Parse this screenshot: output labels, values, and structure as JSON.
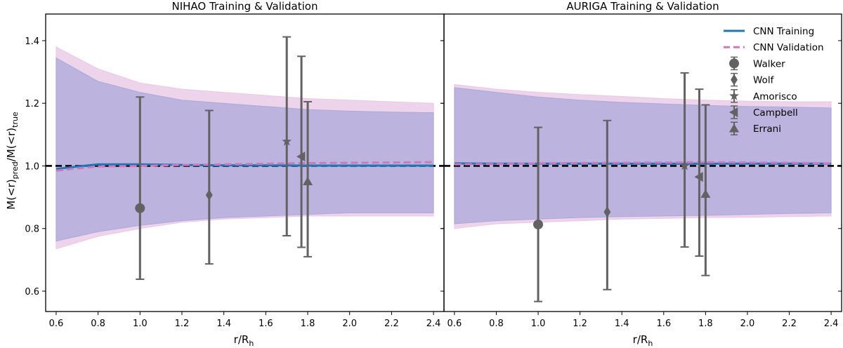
{
  "ylabel_main": "M(<r)",
  "ylabel_sub1": "pred",
  "ylabel_mid": "/M(<r)",
  "ylabel_sub2": "true",
  "xlabel_main": "r/R",
  "xlabel_sub": "h",
  "chart_data": [
    {
      "type": "line",
      "title": "NIHAO Training & Validation",
      "xlim": [
        0.55,
        2.45
      ],
      "ylim": [
        0.535,
        1.485
      ],
      "xticks": [
        0.6,
        0.8,
        1.0,
        1.2,
        1.4,
        1.6,
        1.8,
        2.0,
        2.2,
        2.4
      ],
      "yticks": [
        0.6,
        0.8,
        1.0,
        1.2,
        1.4
      ],
      "reference_line": 1.0,
      "band_validation": {
        "x": [
          0.6,
          0.8,
          1.0,
          1.2,
          1.4,
          1.6,
          1.8,
          2.0,
          2.2,
          2.4
        ],
        "upper": [
          1.38,
          1.31,
          1.265,
          1.245,
          1.235,
          1.225,
          1.215,
          1.21,
          1.205,
          1.2
        ],
        "lower": [
          0.735,
          0.775,
          0.8,
          0.82,
          0.83,
          0.835,
          0.84,
          0.84,
          0.84,
          0.84
        ]
      },
      "band_training": {
        "x": [
          0.6,
          0.8,
          1.0,
          1.2,
          1.4,
          1.6,
          1.8,
          2.0,
          2.2,
          2.4
        ],
        "upper": [
          1.345,
          1.27,
          1.235,
          1.21,
          1.2,
          1.19,
          1.18,
          1.175,
          1.172,
          1.17
        ],
        "lower": [
          0.76,
          0.79,
          0.81,
          0.825,
          0.835,
          0.84,
          0.845,
          0.85,
          0.85,
          0.85
        ]
      },
      "series": [
        {
          "name": "CNN Training",
          "x": [
            0.6,
            0.7,
            0.8,
            1.0,
            1.2,
            1.4,
            1.6,
            1.8,
            2.0,
            2.2,
            2.4
          ],
          "values": [
            0.99,
            0.998,
            1.005,
            1.005,
            1.003,
            1.002,
            1.002,
            1.001,
            1.001,
            1.001,
            1.001
          ]
        },
        {
          "name": "CNN Validation",
          "x": [
            0.6,
            0.7,
            0.8,
            1.0,
            1.2,
            1.4,
            1.6,
            1.8,
            2.0,
            2.2,
            2.4
          ],
          "values": [
            0.985,
            0.992,
            0.998,
            1.0,
            1.003,
            1.005,
            1.007,
            1.009,
            1.01,
            1.011,
            1.012
          ]
        }
      ],
      "points": [
        {
          "name": "Walker",
          "marker": "circle",
          "x": 1.0,
          "y": 0.865,
          "lo": 0.638,
          "hi": 1.22
        },
        {
          "name": "Wolf",
          "marker": "diamond",
          "x": 1.33,
          "y": 0.907,
          "lo": 0.687,
          "hi": 1.177
        },
        {
          "name": "Amorisco",
          "marker": "star",
          "x": 1.7,
          "y": 1.078,
          "lo": 0.777,
          "hi": 1.412
        },
        {
          "name": "Campbell",
          "marker": "triangle-left",
          "x": 1.77,
          "y": 1.03,
          "lo": 0.74,
          "hi": 1.35
        },
        {
          "name": "Errani",
          "marker": "triangle-up",
          "x": 1.8,
          "y": 0.95,
          "lo": 0.71,
          "hi": 1.205
        }
      ]
    },
    {
      "type": "line",
      "title": "AURIGA Training & Validation",
      "xlim": [
        0.55,
        2.45
      ],
      "ylim": [
        0.535,
        1.485
      ],
      "xticks": [
        0.6,
        0.8,
        1.0,
        1.2,
        1.4,
        1.6,
        1.8,
        2.0,
        2.2,
        2.4
      ],
      "yticks": [
        0.6,
        0.8,
        1.0,
        1.2,
        1.4
      ],
      "reference_line": 1.0,
      "band_validation": {
        "x": [
          0.6,
          0.8,
          1.0,
          1.2,
          1.4,
          1.6,
          1.8,
          2.0,
          2.2,
          2.4
        ],
        "upper": [
          1.26,
          1.245,
          1.235,
          1.228,
          1.222,
          1.215,
          1.21,
          1.207,
          1.205,
          1.205
        ],
        "lower": [
          0.8,
          0.815,
          0.82,
          0.825,
          0.83,
          0.832,
          0.835,
          0.836,
          0.838,
          0.84
        ]
      },
      "band_training": {
        "x": [
          0.6,
          0.8,
          1.0,
          1.2,
          1.4,
          1.6,
          1.8,
          2.0,
          2.2,
          2.4
        ],
        "upper": [
          1.25,
          1.235,
          1.22,
          1.21,
          1.203,
          1.198,
          1.193,
          1.19,
          1.188,
          1.185
        ],
        "lower": [
          0.815,
          0.825,
          0.83,
          0.835,
          0.838,
          0.84,
          0.842,
          0.845,
          0.848,
          0.85
        ]
      },
      "series": [
        {
          "name": "CNN Training",
          "x": [
            0.6,
            0.8,
            1.0,
            1.2,
            1.4,
            1.6,
            1.8,
            2.0,
            2.2,
            2.4
          ],
          "values": [
            1.008,
            1.007,
            1.007,
            1.007,
            1.007,
            1.007,
            1.007,
            1.007,
            1.007,
            1.007
          ]
        },
        {
          "name": "CNN Validation",
          "x": [
            0.6,
            0.8,
            1.0,
            1.2,
            1.4,
            1.6,
            1.8,
            2.0,
            2.2,
            2.4
          ],
          "values": [
            1.005,
            1.006,
            1.008,
            1.009,
            1.01,
            1.011,
            1.012,
            1.011,
            1.01,
            1.008
          ]
        }
      ],
      "points": [
        {
          "name": "Walker",
          "marker": "circle",
          "x": 1.0,
          "y": 0.813,
          "lo": 0.567,
          "hi": 1.123
        },
        {
          "name": "Wolf",
          "marker": "diamond",
          "x": 1.33,
          "y": 0.853,
          "lo": 0.605,
          "hi": 1.145
        },
        {
          "name": "Amorisco",
          "marker": "star",
          "x": 1.7,
          "y": 1.0,
          "lo": 0.741,
          "hi": 1.297
        },
        {
          "name": "Campbell",
          "marker": "triangle-left",
          "x": 1.77,
          "y": 0.965,
          "lo": 0.712,
          "hi": 1.245
        },
        {
          "name": "Errani",
          "marker": "triangle-up",
          "x": 1.8,
          "y": 0.91,
          "lo": 0.65,
          "hi": 1.195
        }
      ],
      "legend": {
        "placement": "top-right",
        "entries": [
          "CNN Training",
          "CNN Validation",
          "Walker",
          "Wolf",
          "Amorisco",
          "Campbell",
          "Errani"
        ]
      }
    }
  ],
  "colors": {
    "training_line": "#1f77b4",
    "validation_line": "#cc79c2",
    "training_band": "#a6a6d9",
    "validation_band": "#e8c5e4",
    "points": "#626262",
    "reference": "#000000"
  }
}
